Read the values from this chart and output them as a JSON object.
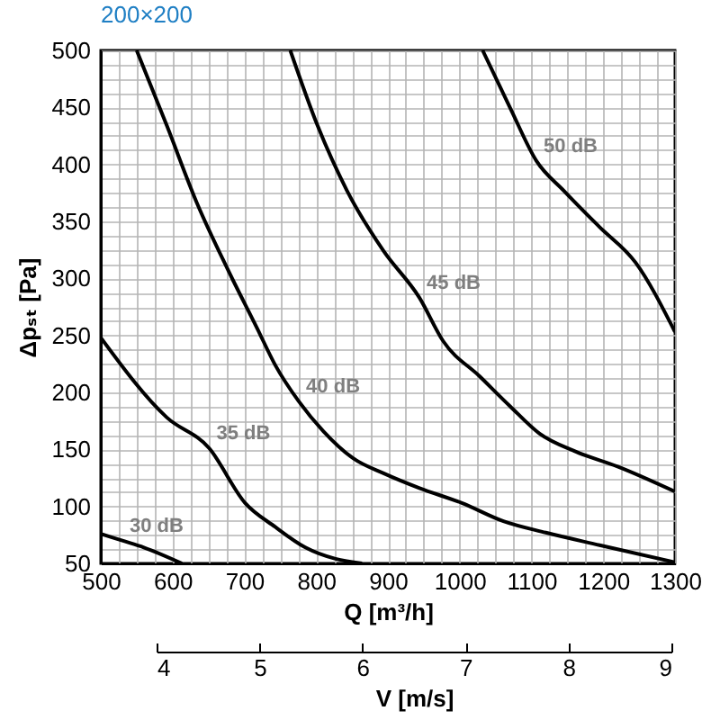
{
  "chart_data": {
    "type": "line",
    "title": "200×200",
    "xlabel": "Q [m³/h]",
    "ylabel": "Δpₛₜ [Pa]",
    "x2label": "V [m/s]",
    "xlim": [
      500,
      1300
    ],
    "ylim": [
      50,
      500
    ],
    "x2lim": [
      4,
      9
    ],
    "x2ticks": [
      4,
      5,
      6,
      7,
      8,
      9
    ],
    "xticks": [
      500,
      {
        "value": 525,
        "label": null
      },
      {
        "value": 550,
        "label": null
      },
      {
        "value": 575,
        "label": null
      },
      600,
      {
        "value": 625,
        "label": null
      },
      {
        "value": 650,
        "label": null
      },
      {
        "value": 675,
        "label": null
      },
      700,
      {
        "value": 725,
        "label": null
      },
      {
        "value": 750,
        "label": null
      },
      {
        "value": 775,
        "label": null
      },
      800,
      {
        "value": 825,
        "label": null
      },
      {
        "value": 850,
        "label": null
      },
      {
        "value": 875,
        "label": null
      },
      900,
      {
        "value": 925,
        "label": null
      },
      {
        "value": 950,
        "label": null
      },
      {
        "value": 975,
        "label": null
      },
      1000,
      {
        "value": 1025,
        "label": null
      },
      {
        "value": 1050,
        "label": null
      },
      {
        "value": 1075,
        "label": null
      },
      1100,
      {
        "value": 1125,
        "label": null
      },
      {
        "value": 1150,
        "label": null
      },
      {
        "value": 1175,
        "label": null
      },
      1200,
      {
        "value": 1225,
        "label": null
      },
      {
        "value": 1250,
        "label": null
      },
      {
        "value": 1275,
        "label": null
      },
      1300
    ],
    "yticks": [
      50,
      {
        "value": 62.5,
        "label": null
      },
      {
        "value": 75,
        "label": null
      },
      {
        "value": 87.5,
        "label": null
      },
      100,
      {
        "value": 112.5,
        "label": null
      },
      {
        "value": 125,
        "label": null
      },
      {
        "value": 137.5,
        "label": null
      },
      150,
      {
        "value": 162.5,
        "label": null
      },
      {
        "value": 175,
        "label": null
      },
      {
        "value": 187.5,
        "label": null
      },
      200,
      {
        "value": 212.5,
        "label": null
      },
      {
        "value": 225,
        "label": null
      },
      {
        "value": 237.5,
        "label": null
      },
      250,
      {
        "value": 262.5,
        "label": null
      },
      {
        "value": 275,
        "label": null
      },
      {
        "value": 287.5,
        "label": null
      },
      300,
      {
        "value": 312.5,
        "label": null
      },
      {
        "value": 325,
        "label": null
      },
      {
        "value": 337.5,
        "label": null
      },
      350,
      {
        "value": 362.5,
        "label": null
      },
      {
        "value": 375,
        "label": null
      },
      {
        "value": 387.5,
        "label": null
      },
      400,
      {
        "value": 412.5,
        "label": null
      },
      {
        "value": 425,
        "label": null
      },
      {
        "value": 437.5,
        "label": null
      },
      450,
      {
        "value": 462.5,
        "label": null
      },
      {
        "value": 475,
        "label": null
      },
      {
        "value": 487.5,
        "label": null
      },
      500
    ],
    "grid": true,
    "legend": false,
    "marker": "none",
    "line_style": "solid",
    "series": [
      {
        "color": "#000000",
        "x": [
          500,
          530,
          560,
          613
        ],
        "values": [
          76,
          70,
          64,
          50
        ]
      },
      {
        "color": "#000000",
        "x": [
          500,
          592,
          651,
          701,
          743,
          785,
          827,
          864
        ],
        "values": [
          248,
          178,
          151,
          103,
          82,
          64,
          54,
          50
        ]
      },
      {
        "color": "#000000",
        "x": [
          550,
          592,
          634,
          676,
          718,
          743,
          776,
          810,
          852,
          894,
          944,
          1003,
          1061,
          1120,
          1195,
          1300
        ],
        "values": [
          500,
          434,
          366,
          309,
          256,
          224,
          192,
          166,
          142,
          129,
          116,
          103,
          87,
          77,
          66,
          51
        ]
      },
      {
        "color": "#000000",
        "x": [
          764,
          802,
          843,
          894,
          944,
          977,
          1028,
          1070,
          1111,
          1162,
          1220,
          1300
        ],
        "values": [
          500,
          434,
          377,
          324,
          283,
          245,
          214,
          188,
          164,
          148,
          135,
          113
        ]
      },
      {
        "color": "#000000",
        "x": [
          1032,
          1070,
          1107,
          1145,
          1195,
          1245,
          1300
        ],
        "values": [
          500,
          450,
          403,
          377,
          345,
          314,
          253
        ]
      }
    ],
    "annotations": [
      {
        "text": "30 dB",
        "x": 530,
        "y": 70
      },
      {
        "text": "35 dB",
        "x": 651,
        "y": 151
      },
      {
        "text": "40 dB",
        "x": 776,
        "y": 192
      },
      {
        "text": "45 dB",
        "x": 944,
        "y": 283
      },
      {
        "text": "50 dB",
        "x": 1107,
        "y": 403
      }
    ]
  }
}
